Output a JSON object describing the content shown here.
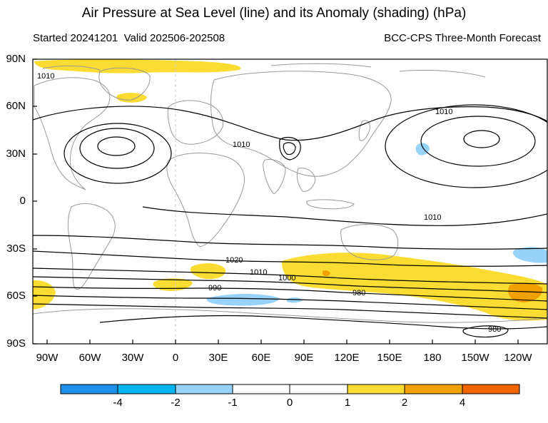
{
  "header": {
    "title": "Air Pressure at Sea Level (line) and its Anomaly (shading) (hPa)",
    "started": "Started 20241201",
    "valid": "Valid 202506-202508",
    "source": "BCC-CPS Three-Month Forecast"
  },
  "axes": {
    "lat_labels": [
      "90N",
      "60N",
      "30N",
      "0",
      "30S",
      "60S",
      "90S"
    ],
    "lon_labels": [
      "90W",
      "60W",
      "30W",
      "0",
      "30E",
      "60E",
      "90E",
      "120E",
      "150E",
      "180",
      "150W",
      "120W"
    ]
  },
  "contour_labels": [
    "1010",
    "1010",
    "1010",
    "1010",
    "1020",
    "1010",
    "1000",
    "990",
    "980",
    "980"
  ],
  "colorbar": {
    "labels": [
      "-4",
      "-2",
      "-1",
      "0",
      "1",
      "2",
      "4"
    ],
    "colors": [
      "#1e90e8",
      "#00b4f0",
      "#96d2fa",
      "#ffffff",
      "#ffffff",
      "#fadc32",
      "#f0a000",
      "#f06400"
    ]
  },
  "colors": {
    "coast": "#999999",
    "isobar": "#000000",
    "anomaly_pos_1": "#fadc32",
    "anomaly_pos_2": "#f0a000",
    "anomaly_pos_4": "#f06400",
    "anomaly_neg_1": "#96d2fa"
  }
}
